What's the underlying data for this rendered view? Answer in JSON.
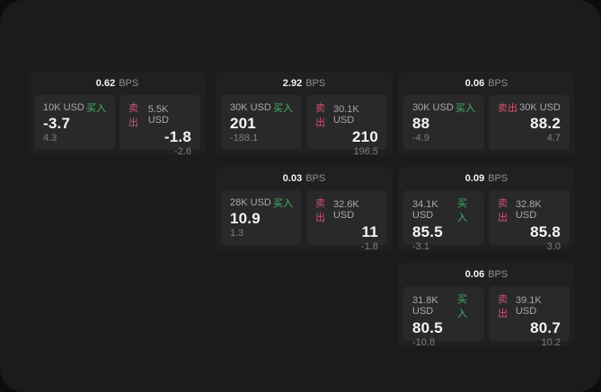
{
  "labels": {
    "bps": "BPS",
    "buy": "买入",
    "sell": "卖出"
  },
  "colors": {
    "background": "#0c0c0d",
    "surface": "#1b1b1d",
    "card": "#202022",
    "tile": "#29292b",
    "buy_green": "#43b863",
    "sell_red": "#d0536d"
  },
  "cards": [
    {
      "bps": "0.62",
      "buy": {
        "notional": "10K USD",
        "price": "-3.7",
        "delta": "4.3"
      },
      "sell": {
        "notional": "5.5K USD",
        "price": "-1.8",
        "delta": "-2.6"
      }
    },
    {
      "bps": "2.92",
      "buy": {
        "notional": "30K USD",
        "price": "201",
        "delta": "-188.1"
      },
      "sell": {
        "notional": "30.1K USD",
        "price": "210",
        "delta": "196.5"
      }
    },
    {
      "bps": "0.06",
      "buy": {
        "notional": "30K USD",
        "price": "88",
        "delta": "-4.9"
      },
      "sell": {
        "notional": "30K USD",
        "price": "88.2",
        "delta": "4.7"
      }
    },
    {
      "bps": "0.03",
      "buy": {
        "notional": "28K USD",
        "price": "10.9",
        "delta": "1.3"
      },
      "sell": {
        "notional": "32.6K USD",
        "price": "11",
        "delta": "-1.8"
      }
    },
    {
      "bps": "0.09",
      "buy": {
        "notional": "34.1K USD",
        "price": "85.5",
        "delta": "-3.1"
      },
      "sell": {
        "notional": "32.8K USD",
        "price": "85.8",
        "delta": "3.0"
      }
    },
    {
      "bps": "0.06",
      "buy": {
        "notional": "31.8K USD",
        "price": "80.5",
        "delta": "-10.8"
      },
      "sell": {
        "notional": "39.1K USD",
        "price": "80.7",
        "delta": "10.2"
      }
    }
  ]
}
